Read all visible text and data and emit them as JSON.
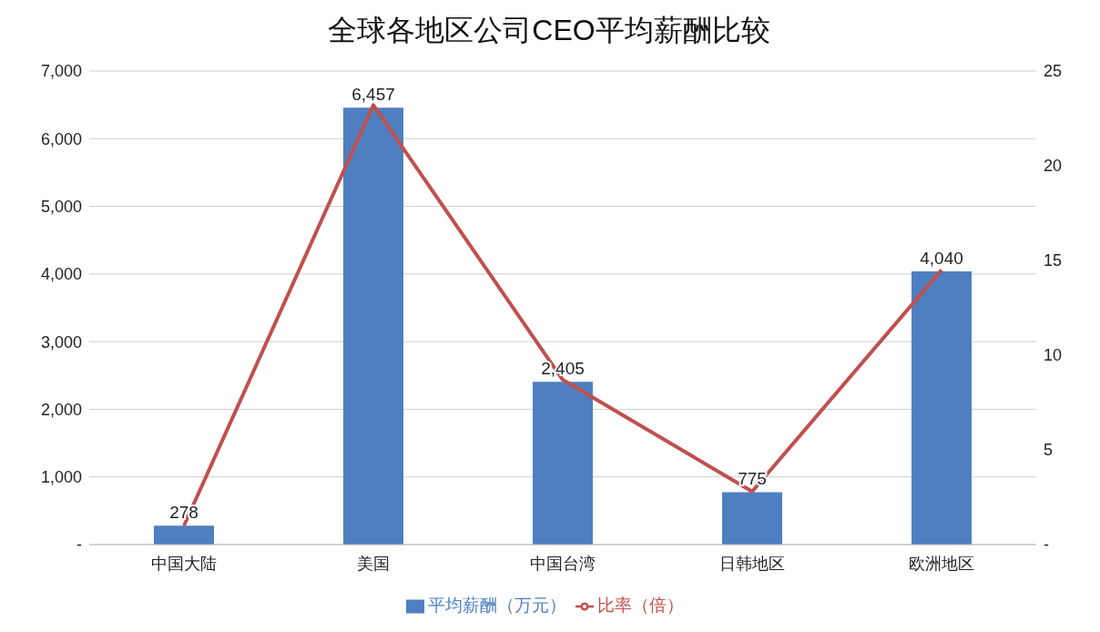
{
  "chart_data": {
    "type": "bar",
    "title": "全球各地区公司CEO平均薪酬比较",
    "categories": [
      "中国大陆",
      "美国",
      "中国台湾",
      "日韩地区",
      "欧洲地区"
    ],
    "series": [
      {
        "name": "平均薪酬（万元）",
        "color": "#4e7fc0",
        "values": [
          278,
          6457,
          2405,
          775,
          4040
        ],
        "value_labels": [
          "278",
          "6,457",
          "2,405",
          "775",
          "4,040"
        ]
      },
      {
        "name": "比率（倍）",
        "type": "line",
        "axis": "y2",
        "color": "#c0504d",
        "values": [
          1,
          23.2,
          8.7,
          2.8,
          14.5
        ]
      }
    ],
    "ylim": [
      0,
      7000
    ],
    "yticks": [
      {
        "value": 0,
        "label": "-"
      },
      {
        "value": 1000,
        "label": "1,000"
      },
      {
        "value": 2000,
        "label": "2,000"
      },
      {
        "value": 3000,
        "label": "3,000"
      },
      {
        "value": 4000,
        "label": "4,000"
      },
      {
        "value": 5000,
        "label": "5,000"
      },
      {
        "value": 6000,
        "label": "6,000"
      },
      {
        "value": 7000,
        "label": "7,000"
      }
    ],
    "y2lim": [
      0,
      25
    ],
    "y2ticks": [
      {
        "value": 0,
        "label": "-"
      },
      5,
      10,
      15,
      20,
      25
    ],
    "grid": "y",
    "legend": "bottom",
    "marker": "none",
    "line_style": "solid"
  }
}
